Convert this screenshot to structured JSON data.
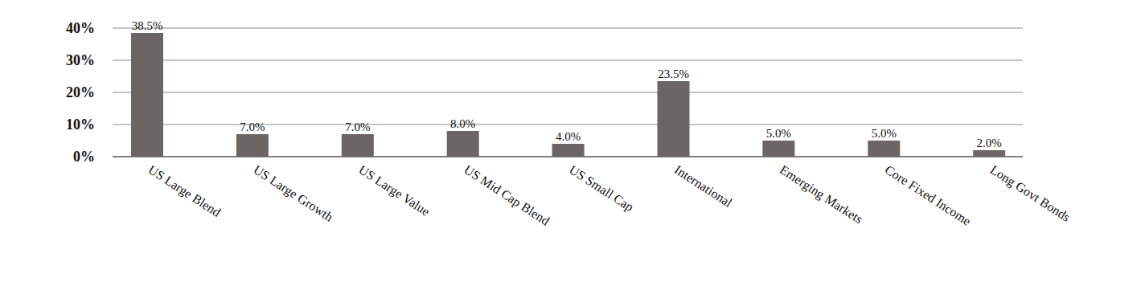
{
  "chart_data": {
    "type": "bar",
    "categories": [
      "US Large Blend",
      "US Large Growth",
      "US Large Value",
      "US Mid Cap Blend",
      "US Small Cap",
      "International",
      "Emerging Markets",
      "Core Fixed Income",
      "Long Govt Bonds"
    ],
    "values": [
      38.5,
      7.0,
      7.0,
      8.0,
      4.0,
      23.5,
      5.0,
      5.0,
      2.0
    ],
    "value_labels": [
      "38.5%",
      "7.0%",
      "7.0%",
      "8.0%",
      "4.0%",
      "23.5%",
      "5.0%",
      "5.0%",
      "2.0%"
    ],
    "color": "#6b6664",
    "ylim": [
      0,
      40
    ],
    "yticks": [
      {
        "value": 0,
        "label": "0%"
      },
      {
        "value": 10,
        "label": "10%"
      },
      {
        "value": 20,
        "label": "20%"
      },
      {
        "value": 30,
        "label": "30%"
      },
      {
        "value": 40,
        "label": "40%"
      }
    ],
    "grid": true,
    "data_labels": true
  }
}
